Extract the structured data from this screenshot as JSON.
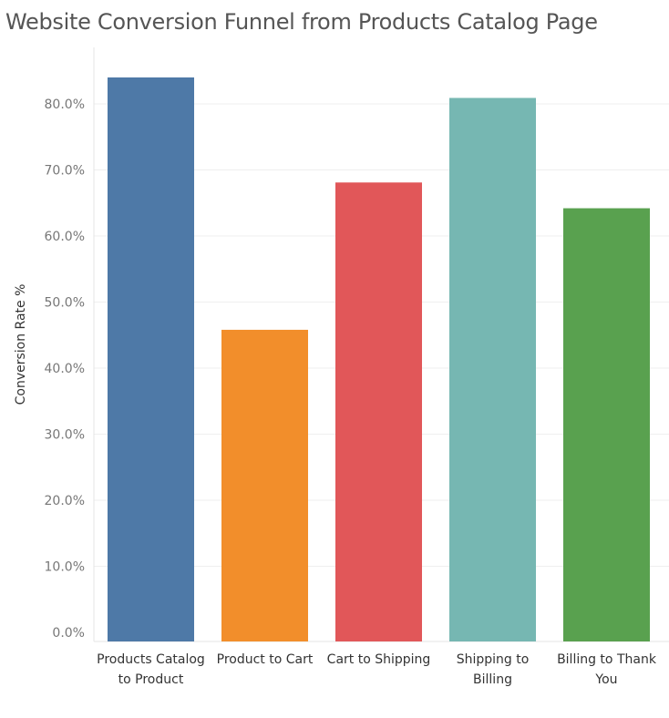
{
  "chart_data": {
    "type": "bar",
    "title": "Website Conversion Funnel from Products Catalog Page",
    "ylabel": "Conversion Rate %",
    "xlabel": "",
    "categories": [
      [
        "Products Catalog",
        "to Product"
      ],
      [
        "Product to Cart"
      ],
      [
        "Cart to Shipping"
      ],
      [
        "Shipping to",
        "Billing"
      ],
      [
        "Billing to Thank",
        "You"
      ]
    ],
    "values": [
      84.0,
      45.8,
      68.1,
      80.9,
      64.2
    ],
    "colors": [
      "#4e79a7",
      "#f28e2b",
      "#e15759",
      "#76b7b2",
      "#59a14f"
    ],
    "yticks": [
      0,
      10,
      20,
      30,
      40,
      50,
      60,
      70,
      80
    ],
    "ytick_labels": [
      "0.0%",
      "10.0%",
      "20.0%",
      "30.0%",
      "40.0%",
      "50.0%",
      "60.0%",
      "70.0%",
      "80.0%"
    ],
    "ylim": [
      0,
      86.5
    ],
    "grid": true
  }
}
